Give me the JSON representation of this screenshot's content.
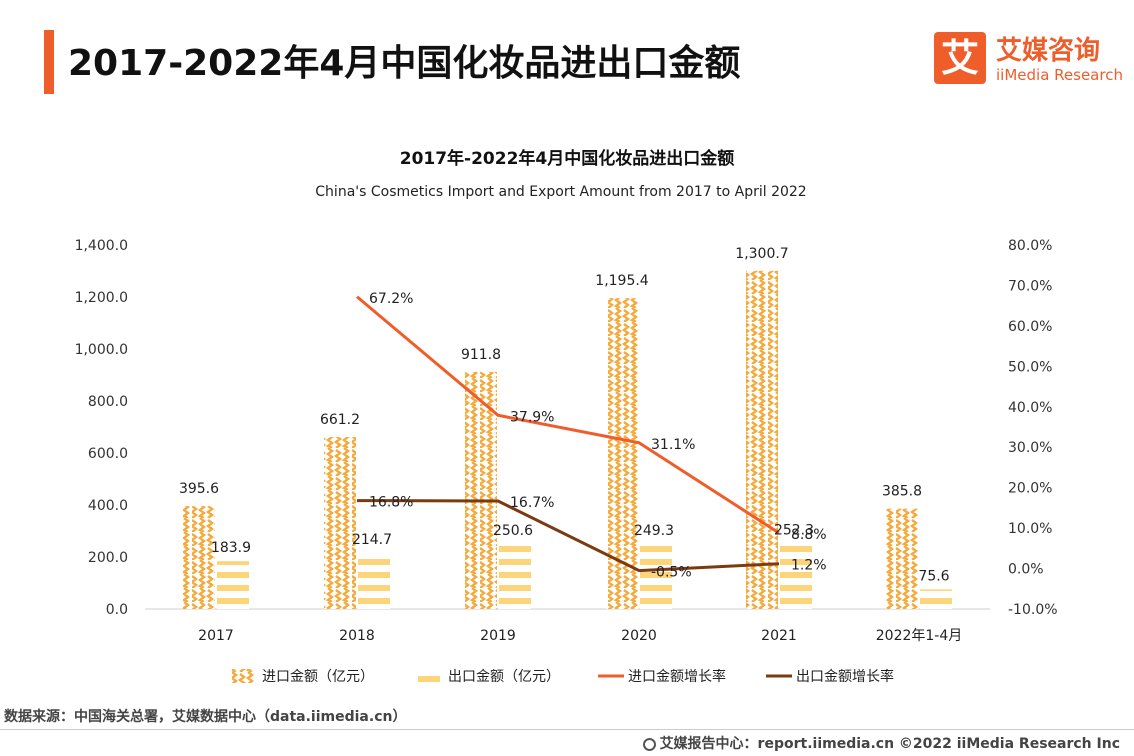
{
  "page": {
    "title": "2017-2022年4月中国化妆品进出口金额",
    "logo_cn": "艾媒咨询",
    "logo_en": "iiMedia Research",
    "logo_mark": "艾",
    "source": "数据来源：中国海关总署，艾媒数据中心（data.iimedia.cn）",
    "footer": "艾媒报告中心：report.iimedia.cn   ©2022  iiMedia Research  Inc",
    "accent_color": "#ef5d2b"
  },
  "chart_data": {
    "type": "bar",
    "title": "2017年-2022年4月中国化妆品进出口金额",
    "subtitle": "China's Cosmetics Import and Export Amount from 2017 to April 2022",
    "categories": [
      "2017",
      "2018",
      "2019",
      "2020",
      "2021",
      "2022年1-4月"
    ],
    "series": [
      {
        "name": "进口金额（亿元）",
        "kind": "bar",
        "axis": "left",
        "color": "#f6a93b",
        "values": [
          395.6,
          661.2,
          911.8,
          1195.4,
          1300.7,
          385.8
        ],
        "labels": [
          "395.6",
          "661.2",
          "911.8",
          "1,195.4",
          "1,300.7",
          "385.8"
        ]
      },
      {
        "name": "出口金额（亿元）",
        "kind": "bar",
        "axis": "left",
        "color": "#fcd57a",
        "values": [
          183.9,
          214.7,
          250.6,
          249.3,
          252.3,
          75.6
        ],
        "labels": [
          "183.9",
          "214.7",
          "250.6",
          "249.3",
          "252.3",
          "75.6"
        ]
      },
      {
        "name": "进口金额增长率",
        "kind": "line",
        "axis": "right",
        "color": "#ef5d2b",
        "values": [
          null,
          67.2,
          37.9,
          31.1,
          8.8,
          null
        ],
        "labels": [
          "",
          "67.2%",
          "37.9%",
          "31.1%",
          "8.8%",
          ""
        ]
      },
      {
        "name": "出口金额增长率",
        "kind": "line",
        "axis": "right",
        "color": "#7b3a10",
        "values": [
          null,
          16.8,
          16.7,
          -0.5,
          1.2,
          null
        ],
        "labels": [
          "",
          "16.8%",
          "16.7%",
          "-0.5%",
          "1.2%",
          ""
        ]
      }
    ],
    "y_left": {
      "min": 0,
      "max": 1400,
      "step": 200,
      "tick_labels": [
        "0.0",
        "200.0",
        "400.0",
        "600.0",
        "800.0",
        "1,000.0",
        "1,200.0",
        "1,400.0"
      ]
    },
    "y_right": {
      "min": -10,
      "max": 80,
      "step": 10,
      "tick_labels": [
        "-10.0%",
        "0.0%",
        "10.0%",
        "20.0%",
        "30.0%",
        "40.0%",
        "50.0%",
        "60.0%",
        "70.0%",
        "80.0%"
      ]
    },
    "grid": false,
    "legend_position": "bottom"
  }
}
